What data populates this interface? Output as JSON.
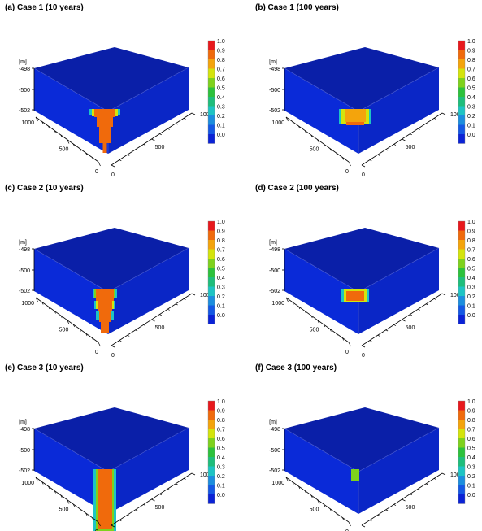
{
  "colorbar": {
    "ticks": [
      "1.0",
      "0.9",
      "0.8",
      "0.7",
      "0.6",
      "0.5",
      "0.4",
      "0.3",
      "0.2",
      "0.1",
      "0.0"
    ],
    "colors": [
      "#e8181c",
      "#f06a0c",
      "#f4a40c",
      "#d4e40c",
      "#7ed21c",
      "#2cc23c",
      "#1ebe7c",
      "#1ec4c4",
      "#1c8ede",
      "#1458e4",
      "#0a22d6"
    ]
  },
  "depth_unit": "[m]",
  "depth_ticks": [
    "-498",
    "-500",
    "-502"
  ],
  "left_axis_ticks": [
    "1000",
    "500",
    "0"
  ],
  "right_axis_ticks": [
    "0",
    "500",
    "1000"
  ],
  "block_colors": {
    "top": "#0a1fa8",
    "front": "#0a2ad8",
    "side": "#0a26c6",
    "edge": "#4a5cd0"
  },
  "panels": [
    {
      "title": "(a) Case 1 (10 years)",
      "plume": [
        {
          "w": 38,
          "top": 0,
          "bot": 8,
          "color": "#1ec4c4"
        },
        {
          "w": 32,
          "top": 0,
          "bot": 9,
          "color": "#d4e40c"
        },
        {
          "w": 26,
          "top": 0,
          "bot": 10,
          "color": "#f06a0c"
        },
        {
          "w": 20,
          "top": 10,
          "bot": 22,
          "color": "#f06a0c"
        },
        {
          "w": 14,
          "top": 22,
          "bot": 42,
          "color": "#f06a0c"
        },
        {
          "w": 5,
          "top": 42,
          "bot": 54,
          "color": "#f06a0c"
        }
      ]
    },
    {
      "title": "(b) Case 1 (100 years)",
      "plume": [
        {
          "w": 40,
          "top": 0,
          "bot": 18,
          "color": "#1ec4c4"
        },
        {
          "w": 34,
          "top": 0,
          "bot": 18,
          "color": "#d4e40c"
        },
        {
          "w": 26,
          "top": 0,
          "bot": 16,
          "color": "#f4a40c"
        },
        {
          "w": 22,
          "top": 16,
          "bot": 20,
          "color": "#f06a0c"
        }
      ]
    },
    {
      "title": "(c) Case 2 (10 years)",
      "plume": [
        {
          "w": 30,
          "top": 0,
          "bot": 10,
          "color": "#1ec4c4"
        },
        {
          "w": 26,
          "top": 0,
          "bot": 10,
          "color": "#7ed21c"
        },
        {
          "w": 22,
          "top": 0,
          "bot": 14,
          "color": "#f06a0c"
        },
        {
          "w": 26,
          "top": 14,
          "bot": 24,
          "color": "#1ec4c4"
        },
        {
          "w": 22,
          "top": 14,
          "bot": 24,
          "color": "#d4e40c"
        },
        {
          "w": 18,
          "top": 14,
          "bot": 26,
          "color": "#f06a0c"
        },
        {
          "w": 22,
          "top": 26,
          "bot": 38,
          "color": "#1ec4c4"
        },
        {
          "w": 14,
          "top": 26,
          "bot": 40,
          "color": "#f06a0c"
        },
        {
          "w": 10,
          "top": 40,
          "bot": 54,
          "color": "#f06a0c"
        }
      ]
    },
    {
      "title": "(d) Case 2 (100 years)",
      "plume": [
        {
          "w": 34,
          "top": 0,
          "bot": 16,
          "color": "#1ec4c4"
        },
        {
          "w": 28,
          "top": 0,
          "bot": 16,
          "color": "#d4e40c"
        },
        {
          "w": 22,
          "top": 2,
          "bot": 14,
          "color": "#f06a0c"
        }
      ]
    },
    {
      "title": "(e) Case 3 (10 years)",
      "plume": [
        {
          "w": 28,
          "top": 0,
          "bot": 78,
          "color": "#1ec4c4"
        },
        {
          "w": 22,
          "top": 0,
          "bot": 76,
          "color": "#7ed21c"
        },
        {
          "w": 18,
          "top": 0,
          "bot": 74,
          "color": "#f06a0c"
        }
      ]
    },
    {
      "title": "(f) Case 3 (100 years)",
      "plume": [
        {
          "w": 10,
          "top": 0,
          "bot": 14,
          "color": "#7ed21c"
        }
      ]
    }
  ]
}
